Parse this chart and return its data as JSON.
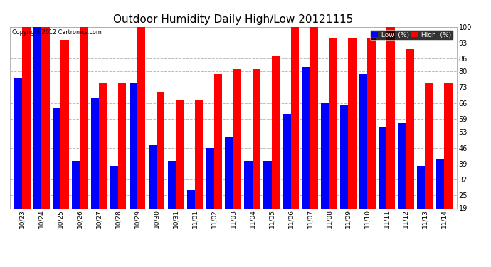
{
  "title": "Outdoor Humidity Daily High/Low 20121115",
  "copyright": "Copyright 2012 Cartronics.com",
  "dates": [
    "10/23",
    "10/24",
    "10/25",
    "10/26",
    "10/27",
    "10/28",
    "10/29",
    "10/30",
    "10/31",
    "11/01",
    "11/02",
    "11/03",
    "11/04",
    "11/05",
    "11/06",
    "11/07",
    "11/08",
    "11/09",
    "11/10",
    "11/11",
    "11/12",
    "11/13",
    "11/14"
  ],
  "high_vals": [
    100,
    100,
    94,
    100,
    75,
    75,
    100,
    71,
    67,
    67,
    79,
    81,
    81,
    87,
    100,
    100,
    95,
    95,
    95,
    100,
    90,
    75,
    75
  ],
  "low_vals": [
    77,
    100,
    64,
    40,
    68,
    38,
    75,
    47,
    40,
    27,
    46,
    51,
    40,
    40,
    61,
    82,
    66,
    65,
    79,
    55,
    57,
    38,
    41
  ],
  "bg_color": "#ffffff",
  "plot_bg": "#ffffff",
  "grid_color": "#bbbbbb",
  "bar_color_high": "#ff0000",
  "bar_color_low": "#0000ff",
  "border_color": "#aaaaaa",
  "ylim_min": 19,
  "ylim_max": 100,
  "yticks": [
    19,
    25,
    32,
    39,
    46,
    53,
    59,
    66,
    73,
    80,
    86,
    93,
    100
  ],
  "title_fontsize": 11,
  "tick_fontsize": 7
}
